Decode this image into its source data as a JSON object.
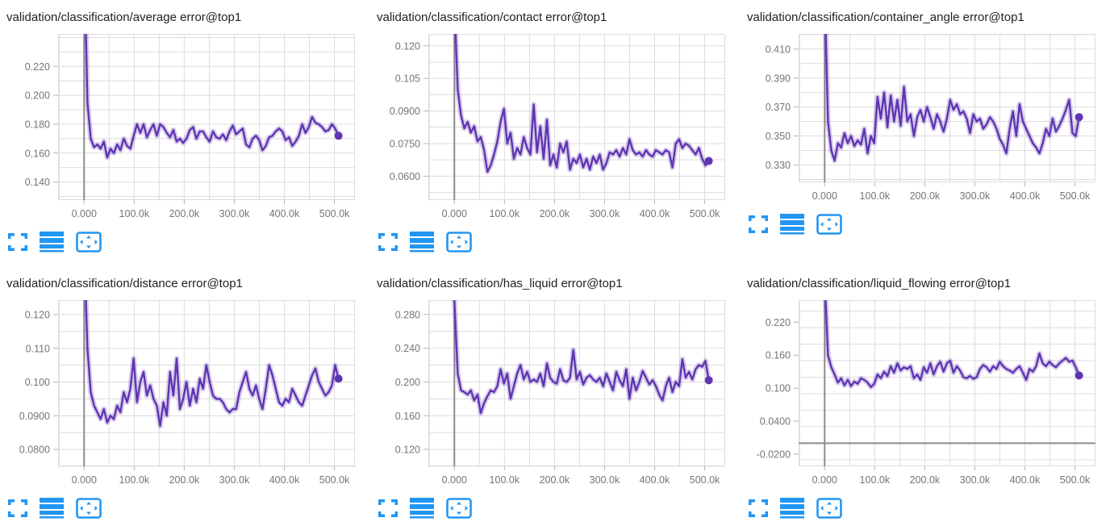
{
  "colors": {
    "line": "#5e35b1",
    "line_halo": "rgba(126,87,194,0.30)",
    "grid": "#dcdcdc",
    "axis_zero_line": "#8c8c8c",
    "tick_mark": "#b3b3b3",
    "tick_text": "#757575",
    "title_text": "#212121",
    "icon_blue": "#2196f3"
  },
  "toolbar": {
    "icons": [
      "fullscreen-icon",
      "data-series-icon",
      "fit-domain-icon"
    ]
  },
  "x_axis": {
    "domain": [
      -52000,
      541000
    ],
    "minor_step": 50000,
    "major_tick_values": [
      0,
      100000,
      200000,
      300000,
      400000,
      500000
    ],
    "tick_labels": [
      "0.000",
      "100.0k",
      "200.0k",
      "300.0k",
      "400.0k",
      "500.0k"
    ]
  },
  "chart_data": [
    {
      "type": "line",
      "title": "validation/classification/average error@top1",
      "x_step": 6600,
      "ylim": [
        0.1275,
        0.2425
      ],
      "y_minor_step": 0.01,
      "y_ticks": {
        "labels": [
          "0.140",
          "0.160",
          "0.180",
          "0.200",
          "0.220"
        ],
        "values": [
          0.14,
          0.16,
          0.18,
          0.2,
          0.22
        ]
      },
      "series": [
        {
          "name": "validation",
          "color": "#5e35b1",
          "values": [
            0.3,
            0.195,
            0.17,
            0.164,
            0.166,
            0.163,
            0.168,
            0.157,
            0.163,
            0.16,
            0.166,
            0.162,
            0.17,
            0.165,
            0.163,
            0.172,
            0.18,
            0.174,
            0.18,
            0.171,
            0.176,
            0.18,
            0.172,
            0.18,
            0.178,
            0.174,
            0.171,
            0.176,
            0.168,
            0.17,
            0.167,
            0.17,
            0.176,
            0.178,
            0.17,
            0.175,
            0.175,
            0.171,
            0.168,
            0.175,
            0.171,
            0.17,
            0.173,
            0.169,
            0.175,
            0.179,
            0.173,
            0.175,
            0.177,
            0.166,
            0.164,
            0.17,
            0.172,
            0.169,
            0.162,
            0.165,
            0.171,
            0.172,
            0.175,
            0.177,
            0.175,
            0.169,
            0.171,
            0.165,
            0.168,
            0.172,
            0.18,
            0.174,
            0.178,
            0.185,
            0.181,
            0.18,
            0.178,
            0.175,
            0.176,
            0.18,
            0.177,
            0.172
          ]
        }
      ]
    },
    {
      "type": "line",
      "title": "validation/classification/contact error@top1",
      "x_step": 6600,
      "ylim": [
        0.049,
        0.1255
      ],
      "y_minor_step": 0.0075,
      "y_ticks": {
        "labels": [
          "0.0600",
          "0.0750",
          "0.0900",
          "0.105",
          "0.120"
        ],
        "values": [
          0.06,
          0.075,
          0.09,
          0.105,
          0.12
        ]
      },
      "series": [
        {
          "name": "validation",
          "color": "#5e35b1",
          "values": [
            0.14,
            0.1,
            0.088,
            0.082,
            0.085,
            0.08,
            0.083,
            0.076,
            0.078,
            0.072,
            0.062,
            0.065,
            0.07,
            0.076,
            0.085,
            0.091,
            0.075,
            0.08,
            0.068,
            0.073,
            0.07,
            0.078,
            0.073,
            0.07,
            0.093,
            0.071,
            0.083,
            0.068,
            0.086,
            0.065,
            0.07,
            0.064,
            0.075,
            0.071,
            0.076,
            0.063,
            0.068,
            0.066,
            0.07,
            0.064,
            0.068,
            0.063,
            0.069,
            0.066,
            0.07,
            0.063,
            0.066,
            0.071,
            0.07,
            0.072,
            0.069,
            0.073,
            0.07,
            0.077,
            0.072,
            0.07,
            0.071,
            0.069,
            0.072,
            0.07,
            0.069,
            0.072,
            0.071,
            0.07,
            0.072,
            0.071,
            0.064,
            0.075,
            0.077,
            0.073,
            0.075,
            0.074,
            0.072,
            0.07,
            0.073,
            0.068,
            0.065,
            0.067
          ]
        }
      ]
    },
    {
      "type": "line",
      "title": "validation/classification/container_angle error@top1",
      "x_step": 6600,
      "ylim": [
        0.318,
        0.4205
      ],
      "y_minor_step": 0.01,
      "y_ticks": {
        "labels": [
          "0.330",
          "0.350",
          "0.370",
          "0.390",
          "0.410"
        ],
        "values": [
          0.33,
          0.35,
          0.37,
          0.39,
          0.41
        ]
      },
      "series": [
        {
          "name": "validation",
          "color": "#5e35b1",
          "values": [
            0.45,
            0.36,
            0.34,
            0.333,
            0.345,
            0.342,
            0.352,
            0.345,
            0.35,
            0.343,
            0.347,
            0.344,
            0.355,
            0.338,
            0.35,
            0.345,
            0.377,
            0.362,
            0.38,
            0.356,
            0.378,
            0.36,
            0.375,
            0.357,
            0.384,
            0.36,
            0.365,
            0.35,
            0.363,
            0.368,
            0.36,
            0.37,
            0.363,
            0.355,
            0.365,
            0.36,
            0.353,
            0.362,
            0.375,
            0.368,
            0.372,
            0.365,
            0.367,
            0.362,
            0.352,
            0.365,
            0.36,
            0.362,
            0.355,
            0.358,
            0.363,
            0.36,
            0.355,
            0.348,
            0.344,
            0.338,
            0.355,
            0.367,
            0.35,
            0.372,
            0.36,
            0.355,
            0.35,
            0.345,
            0.342,
            0.338,
            0.345,
            0.355,
            0.35,
            0.362,
            0.353,
            0.357,
            0.362,
            0.368,
            0.375,
            0.352,
            0.35,
            0.363
          ]
        }
      ]
    },
    {
      "type": "line",
      "title": "validation/classification/distance error@top1",
      "x_step": 6600,
      "ylim": [
        0.075,
        0.1243
      ],
      "y_minor_step": 0.005,
      "y_ticks": {
        "labels": [
          "0.0800",
          "0.0900",
          "0.100",
          "0.110",
          "0.120"
        ],
        "values": [
          0.08,
          0.09,
          0.1,
          0.11,
          0.12
        ]
      },
      "series": [
        {
          "name": "validation",
          "color": "#5e35b1",
          "values": [
            0.14,
            0.11,
            0.097,
            0.093,
            0.091,
            0.089,
            0.092,
            0.088,
            0.09,
            0.089,
            0.093,
            0.091,
            0.097,
            0.094,
            0.098,
            0.107,
            0.094,
            0.1,
            0.103,
            0.096,
            0.099,
            0.095,
            0.093,
            0.087,
            0.094,
            0.09,
            0.103,
            0.096,
            0.107,
            0.092,
            0.095,
            0.1,
            0.093,
            0.098,
            0.094,
            0.101,
            0.098,
            0.105,
            0.1,
            0.096,
            0.095,
            0.095,
            0.094,
            0.092,
            0.091,
            0.092,
            0.092,
            0.097,
            0.1,
            0.103,
            0.098,
            0.096,
            0.099,
            0.095,
            0.092,
            0.098,
            0.105,
            0.102,
            0.098,
            0.094,
            0.093,
            0.095,
            0.094,
            0.098,
            0.096,
            0.094,
            0.093,
            0.096,
            0.099,
            0.102,
            0.104,
            0.1,
            0.098,
            0.096,
            0.097,
            0.099,
            0.105,
            0.101
          ]
        }
      ]
    },
    {
      "type": "line",
      "title": "validation/classification/has_liquid error@top1",
      "x_step": 6600,
      "ylim": [
        0.1,
        0.297
      ],
      "y_minor_step": 0.02,
      "y_ticks": {
        "labels": [
          "0.120",
          "0.160",
          "0.200",
          "0.240",
          "0.280"
        ],
        "values": [
          0.12,
          0.16,
          0.2,
          0.24,
          0.28
        ]
      },
      "series": [
        {
          "name": "validation",
          "color": "#5e35b1",
          "values": [
            0.296,
            0.21,
            0.19,
            0.188,
            0.185,
            0.19,
            0.178,
            0.185,
            0.163,
            0.175,
            0.183,
            0.19,
            0.188,
            0.195,
            0.215,
            0.198,
            0.21,
            0.18,
            0.195,
            0.21,
            0.22,
            0.203,
            0.212,
            0.2,
            0.203,
            0.2,
            0.21,
            0.195,
            0.222,
            0.205,
            0.2,
            0.198,
            0.215,
            0.202,
            0.2,
            0.205,
            0.238,
            0.203,
            0.212,
            0.197,
            0.205,
            0.208,
            0.203,
            0.2,
            0.205,
            0.195,
            0.21,
            0.2,
            0.19,
            0.212,
            0.202,
            0.195,
            0.215,
            0.18,
            0.205,
            0.19,
            0.2,
            0.213,
            0.205,
            0.197,
            0.202,
            0.195,
            0.185,
            0.178,
            0.195,
            0.205,
            0.188,
            0.2,
            0.195,
            0.227,
            0.205,
            0.212,
            0.203,
            0.215,
            0.22,
            0.218,
            0.225,
            0.202
          ]
        }
      ]
    },
    {
      "type": "line",
      "title": "validation/classification/liquid_flowing error@top1",
      "x_step": 6600,
      "ylim": [
        -0.042,
        0.26
      ],
      "y_minor_step": 0.03,
      "y_ticks": {
        "labels": [
          "-0.0200",
          "0.0400",
          "0.100",
          "0.160",
          "0.220"
        ],
        "values": [
          -0.02,
          0.04,
          0.1,
          0.16,
          0.22
        ]
      },
      "series": [
        {
          "name": "validation",
          "color": "#5e35b1",
          "values": [
            0.3,
            0.16,
            0.138,
            0.125,
            0.11,
            0.118,
            0.105,
            0.115,
            0.104,
            0.112,
            0.108,
            0.118,
            0.115,
            0.11,
            0.102,
            0.108,
            0.125,
            0.118,
            0.13,
            0.122,
            0.14,
            0.128,
            0.145,
            0.132,
            0.138,
            0.135,
            0.14,
            0.118,
            0.125,
            0.115,
            0.138,
            0.128,
            0.145,
            0.125,
            0.14,
            0.148,
            0.13,
            0.145,
            0.15,
            0.128,
            0.14,
            0.132,
            0.12,
            0.118,
            0.122,
            0.117,
            0.12,
            0.135,
            0.142,
            0.138,
            0.13,
            0.14,
            0.135,
            0.148,
            0.14,
            0.135,
            0.132,
            0.128,
            0.135,
            0.14,
            0.128,
            0.115,
            0.135,
            0.13,
            0.14,
            0.163,
            0.145,
            0.14,
            0.148,
            0.142,
            0.138,
            0.145,
            0.15,
            0.155,
            0.148,
            0.15,
            0.138,
            0.123
          ]
        }
      ]
    }
  ]
}
